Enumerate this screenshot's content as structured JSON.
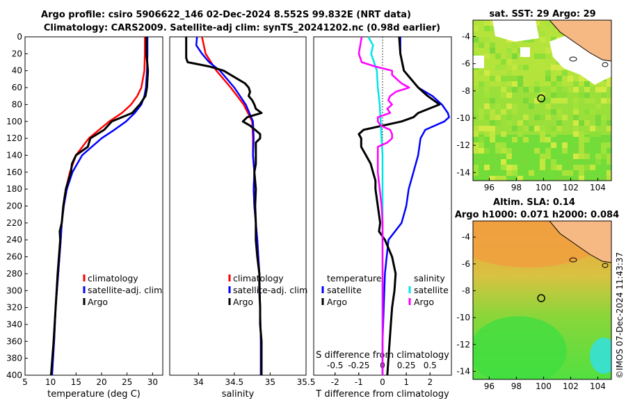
{
  "title_line1": "Argo profile: csiro 5906622_146 02-Dec-2024 8.552S 99.832E (NRT data)",
  "title_line2": "Climatology: CARS2009. Satellite-adj clim: synTS_20241202.nc (0.98d earlier)",
  "colors": {
    "climatology": "#ff0000",
    "satellite": "#0000ff",
    "argo": "#000000",
    "s_sat": "#00e5e5",
    "s_argo": "#ff00ff",
    "land": "#f7b983"
  },
  "chart_data": [
    {
      "type": "line",
      "id": "temperature",
      "xlabel": "temperature (deg C)",
      "ylabel": "depth",
      "xlim": [
        5,
        32
      ],
      "ylim": [
        400,
        0
      ],
      "xticks": [
        "5",
        "10",
        "15",
        "20",
        "25",
        "30"
      ],
      "xtick_values": [
        5,
        10,
        15,
        20,
        25,
        30
      ],
      "yticks": [
        "0",
        "20",
        "40",
        "60",
        "80",
        "100",
        "120",
        "140",
        "160",
        "180",
        "200",
        "220",
        "240",
        "260",
        "280",
        "300",
        "320",
        "340",
        "360",
        "380",
        "400"
      ],
      "legend": [
        "climatology",
        "satellite-adj. clim",
        "Argo"
      ],
      "series": [
        {
          "name": "climatology",
          "color": "#ff0000",
          "depth": [
            0,
            20,
            40,
            60,
            70,
            80,
            90,
            100,
            120,
            140,
            160,
            180,
            200,
            220,
            240,
            280,
            320,
            360,
            400
          ],
          "values": [
            28.5,
            28.5,
            28.4,
            27.8,
            27,
            25.8,
            24,
            21.5,
            17.5,
            15,
            13.8,
            13,
            12.6,
            12.2,
            12,
            11.5,
            11,
            10.7,
            10.2
          ]
        },
        {
          "name": "satellite-adj. clim",
          "color": "#0000ff",
          "depth": [
            0,
            20,
            40,
            60,
            70,
            80,
            90,
            100,
            110,
            120,
            140,
            160,
            180,
            200,
            220,
            240,
            280,
            320,
            360,
            400
          ],
          "values": [
            29,
            29,
            28.9,
            28.7,
            28.4,
            27.8,
            26.5,
            24.8,
            22.5,
            20,
            16.2,
            14.3,
            13.2,
            12.6,
            12.2,
            12,
            11.5,
            11,
            10.7,
            10.3
          ]
        },
        {
          "name": "Argo",
          "color": "#000000",
          "depth": [
            0,
            20,
            40,
            50,
            60,
            70,
            80,
            90,
            100,
            110,
            120,
            130,
            140,
            150,
            160,
            180,
            200,
            220,
            230,
            240,
            280,
            320,
            360,
            400
          ],
          "values": [
            28.8,
            28.8,
            29.1,
            29,
            28.9,
            28.6,
            27.5,
            26,
            22,
            20.5,
            17.8,
            17.3,
            15,
            14.2,
            14,
            13,
            12.5,
            12.2,
            11.8,
            11.9,
            11.4,
            11,
            10.6,
            10.1
          ]
        }
      ]
    },
    {
      "type": "line",
      "id": "salinity",
      "xlabel": "salinity",
      "ylabel": "depth",
      "xlim": [
        33.6,
        35.5
      ],
      "ylim": [
        400,
        0
      ],
      "xticks": [
        "34",
        "34.5",
        "35",
        "35.5"
      ],
      "xtick_values": [
        34,
        34.5,
        35,
        35.5
      ],
      "legend": [
        "climatology",
        "satellite-adj. clim",
        "Argo"
      ],
      "series": [
        {
          "name": "climatology",
          "color": "#ff0000",
          "depth": [
            0,
            20,
            40,
            60,
            80,
            100,
            120,
            140,
            160,
            180,
            200,
            220,
            240,
            280,
            320,
            360,
            400
          ],
          "values": [
            34.05,
            34.1,
            34.25,
            34.45,
            34.63,
            34.75,
            34.76,
            34.76,
            34.78,
            34.77,
            34.78,
            34.8,
            34.82,
            34.85,
            34.86,
            34.87,
            34.87
          ]
        },
        {
          "name": "satellite-adj. clim",
          "color": "#0000ff",
          "depth": [
            0,
            10,
            20,
            30,
            40,
            60,
            80,
            100,
            120,
            140,
            160,
            180,
            200,
            220,
            240,
            280,
            320,
            360,
            400
          ],
          "values": [
            33.98,
            33.97,
            34.05,
            34.15,
            34.3,
            34.5,
            34.66,
            34.76,
            34.77,
            34.76,
            34.78,
            34.77,
            34.78,
            34.8,
            34.82,
            34.85,
            34.86,
            34.87,
            34.87
          ]
        },
        {
          "name": "Argo",
          "color": "#000000",
          "depth": [
            0,
            15,
            25,
            30,
            35,
            40,
            45,
            50,
            55,
            60,
            65,
            70,
            75,
            80,
            85,
            90,
            95,
            100,
            105,
            110,
            115,
            120,
            125,
            130,
            140,
            150,
            160,
            180,
            200,
            220,
            240,
            260,
            280,
            300,
            320,
            340,
            360,
            380,
            400
          ],
          "values": [
            33.83,
            33.83,
            33.83,
            33.85,
            34.15,
            34.35,
            34.45,
            34.55,
            34.65,
            34.7,
            34.72,
            34.7,
            34.75,
            34.78,
            34.8,
            34.88,
            34.68,
            34.62,
            34.72,
            34.79,
            34.86,
            34.86,
            34.8,
            34.8,
            34.8,
            34.8,
            34.78,
            34.8,
            34.79,
            34.8,
            34.8,
            34.82,
            34.85,
            34.85,
            34.86,
            34.86,
            34.88,
            34.88,
            34.88
          ]
        }
      ]
    },
    {
      "type": "line",
      "id": "difference",
      "xlabel": "T difference from climatology",
      "ylabel": "depth",
      "xlim": [
        -2.9,
        2.9
      ],
      "ylim": [
        400,
        0
      ],
      "xticks": [
        "-2",
        "-1",
        "0",
        "1",
        "2"
      ],
      "xtick_values": [
        -2,
        -1,
        0,
        1,
        2
      ],
      "s_axis_label": "S difference from climatology",
      "s_ticks": [
        "-0.5",
        "-0.25",
        "0",
        "0.25",
        "0.5"
      ],
      "s_tick_values": [
        -0.5,
        -0.25,
        0,
        0.25,
        0.5
      ],
      "legend_left": {
        "header": "temperature",
        "items": [
          "satellite",
          "Argo"
        ]
      },
      "legend_right": {
        "header": "salinity",
        "items": [
          "satellite",
          "Argo"
        ]
      },
      "series": [
        {
          "name": "T satellite",
          "color": "#0000ff",
          "depth": [
            0,
            20,
            40,
            60,
            70,
            80,
            90,
            95,
            100,
            110,
            120,
            140,
            160,
            180,
            200,
            220,
            240,
            280,
            320,
            360,
            400
          ],
          "values": [
            0.75,
            0.75,
            0.9,
            1.5,
            2.1,
            2.5,
            2.75,
            2.8,
            2.6,
            1.8,
            1.6,
            1.5,
            1.3,
            1.1,
            1,
            0.8,
            0.25,
            0.1,
            0.05,
            0,
            0
          ]
        },
        {
          "name": "T Argo",
          "color": "#000000",
          "depth": [
            0,
            20,
            40,
            60,
            70,
            80,
            90,
            95,
            100,
            110,
            115,
            120,
            130,
            140,
            150,
            160,
            170,
            180,
            200,
            220,
            230,
            240,
            260,
            280,
            300,
            320,
            340,
            360,
            400
          ],
          "values": [
            0.7,
            0.75,
            0.9,
            1.5,
            1.9,
            2.4,
            1.5,
            1.3,
            0.8,
            -0.8,
            -1,
            -0.9,
            -0.9,
            -0.7,
            -0.5,
            -0.4,
            -0.3,
            -0.3,
            -0.2,
            -0.1,
            -0.15,
            0.1,
            0.4,
            0.55,
            0.5,
            0.4,
            0.35,
            0.3,
            0.2
          ]
        },
        {
          "name": "S satellite",
          "color": "#00e5e5",
          "depth": [
            0,
            10,
            20,
            40,
            60,
            80,
            100,
            120,
            140,
            180,
            220,
            260,
            300,
            340,
            400
          ],
          "values": [
            -0.15,
            -0.1,
            -0.12,
            -0.06,
            -0.05,
            -0.03,
            -0.02,
            -0.01,
            0,
            0,
            0,
            0,
            0,
            0,
            0
          ]
        },
        {
          "name": "S Argo",
          "color": "#ff00ff",
          "depth": [
            0,
            20,
            30,
            35,
            40,
            45,
            50,
            55,
            60,
            65,
            70,
            75,
            80,
            85,
            90,
            95,
            100,
            105,
            110,
            115,
            120,
            125,
            130,
            140,
            150,
            160,
            170,
            180,
            200,
            220,
            240,
            280,
            320,
            360,
            400
          ],
          "values": [
            -0.22,
            -0.25,
            -0.22,
            -0.08,
            0.1,
            0.1,
            0.15,
            0.2,
            0.28,
            0.14,
            0.08,
            0.06,
            0.1,
            0.05,
            0.08,
            -0.05,
            -0.05,
            -0.02,
            0.08,
            0.1,
            0.1,
            0.05,
            -0.05,
            -0.05,
            -0.05,
            -0.05,
            -0.04,
            -0.03,
            -0.01,
            0,
            0,
            0,
            0,
            0,
            0
          ]
        }
      ]
    },
    {
      "type": "heatmap",
      "id": "sst_map",
      "title": "sat. SST: 29 Argo: 29",
      "xticks": [
        "96",
        "98",
        "100",
        "102",
        "104"
      ],
      "xtick_values": [
        96,
        98,
        100,
        102,
        104
      ],
      "yticks": [
        "-4",
        "-6",
        "-8",
        "-10",
        "-12",
        "-14"
      ],
      "ytick_values": [
        -4,
        -6,
        -8,
        -10,
        -12,
        -14
      ],
      "xlim": [
        94.8,
        105
      ],
      "ylim": [
        -14.6,
        -2.8
      ],
      "argo_position": {
        "lon": 99.83,
        "lat": -8.55
      }
    },
    {
      "type": "heatmap",
      "id": "sla_map",
      "title_line1": "Altim. SLA: 0.14",
      "title_line2": "Argo h1000: 0.071 h2000: 0.084",
      "xticks": [
        "96",
        "98",
        "100",
        "102",
        "104"
      ],
      "xtick_values": [
        96,
        98,
        100,
        102,
        104
      ],
      "yticks": [
        "-4",
        "-6",
        "-8",
        "-10",
        "-12",
        "-14"
      ],
      "ytick_values": [
        -4,
        -6,
        -8,
        -10,
        -12,
        -14
      ],
      "xlim": [
        94.8,
        105
      ],
      "ylim": [
        -14.6,
        -2.8
      ],
      "argo_position": {
        "lon": 99.83,
        "lat": -8.55
      }
    }
  ],
  "credit": "©IMOS 07-Dec-2024 11:43:37"
}
